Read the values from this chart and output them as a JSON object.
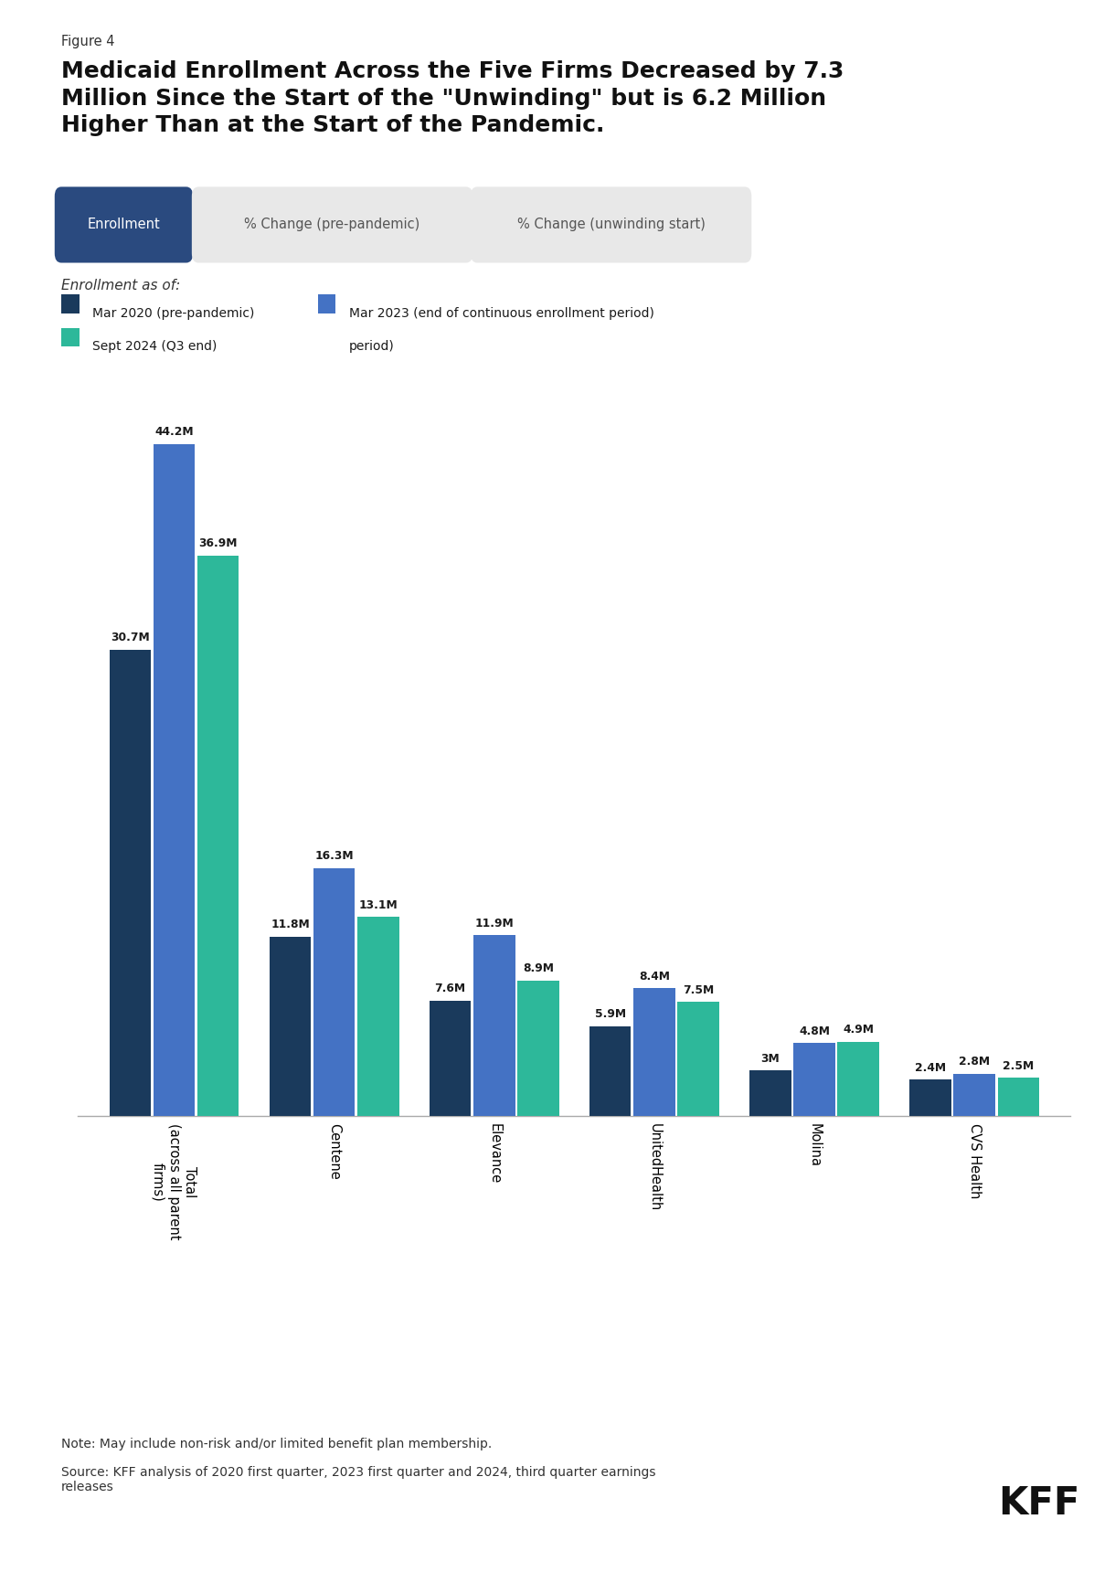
{
  "figure_label": "Figure 4",
  "title": "Medicaid Enrollment Across the Five Firms Decreased by 7.3\nMillion Since the Start of the \"Unwinding\" but is 6.2 Million\nHigher Than at the Start of the Pandemic.",
  "tab_labels": [
    "Enrollment",
    "% Change (pre-pandemic)",
    "% Change (unwinding start)"
  ],
  "subtitle": "Enrollment as of:",
  "legend": [
    {
      "label": "Mar 2020 (pre-pandemic)",
      "color": "#1a3a5c"
    },
    {
      "label": "Mar 2023 (end of continuous enrollment period)",
      "color": "#4472c4"
    },
    {
      "label": "Sept 2024 (Q3 end)",
      "color": "#2db89a"
    }
  ],
  "categories": [
    "Total\n(across all parent\nfirms)",
    "Centene",
    "Elevance",
    "UnitedHealth",
    "Molina",
    "CVS Health"
  ],
  "series": {
    "mar2020": [
      30.7,
      11.8,
      7.6,
      5.9,
      3.0,
      2.4
    ],
    "mar2023": [
      44.2,
      16.3,
      11.9,
      8.4,
      4.8,
      2.8
    ],
    "sept2024": [
      36.9,
      13.1,
      8.9,
      7.5,
      4.9,
      2.5
    ]
  },
  "labels": {
    "mar2020": [
      "30.7M",
      "11.8M",
      "7.6M",
      "5.9M",
      "3M",
      "2.4M"
    ],
    "mar2023": [
      "44.2M",
      "16.3M",
      "11.9M",
      "8.4M",
      "4.8M",
      "2.8M"
    ],
    "sept2024": [
      "36.9M",
      "13.1M",
      "8.9M",
      "7.5M",
      "4.9M",
      "2.5M"
    ]
  },
  "colors": {
    "mar2020": "#1a3a5c",
    "mar2023": "#4472c4",
    "sept2024": "#2db89a"
  },
  "ylim": [
    0,
    50
  ],
  "note": "Note: May include non-risk and/or limited benefit plan membership.",
  "source": "Source: KFF analysis of 2020 first quarter, 2023 first quarter and 2024, third quarter earnings\nreleases",
  "background_color": "#ffffff",
  "tab_active_color": "#2a4a7f",
  "tab_inactive_color": "#e8e8e8",
  "tab_active_text": "#ffffff",
  "tab_inactive_text": "#555555"
}
